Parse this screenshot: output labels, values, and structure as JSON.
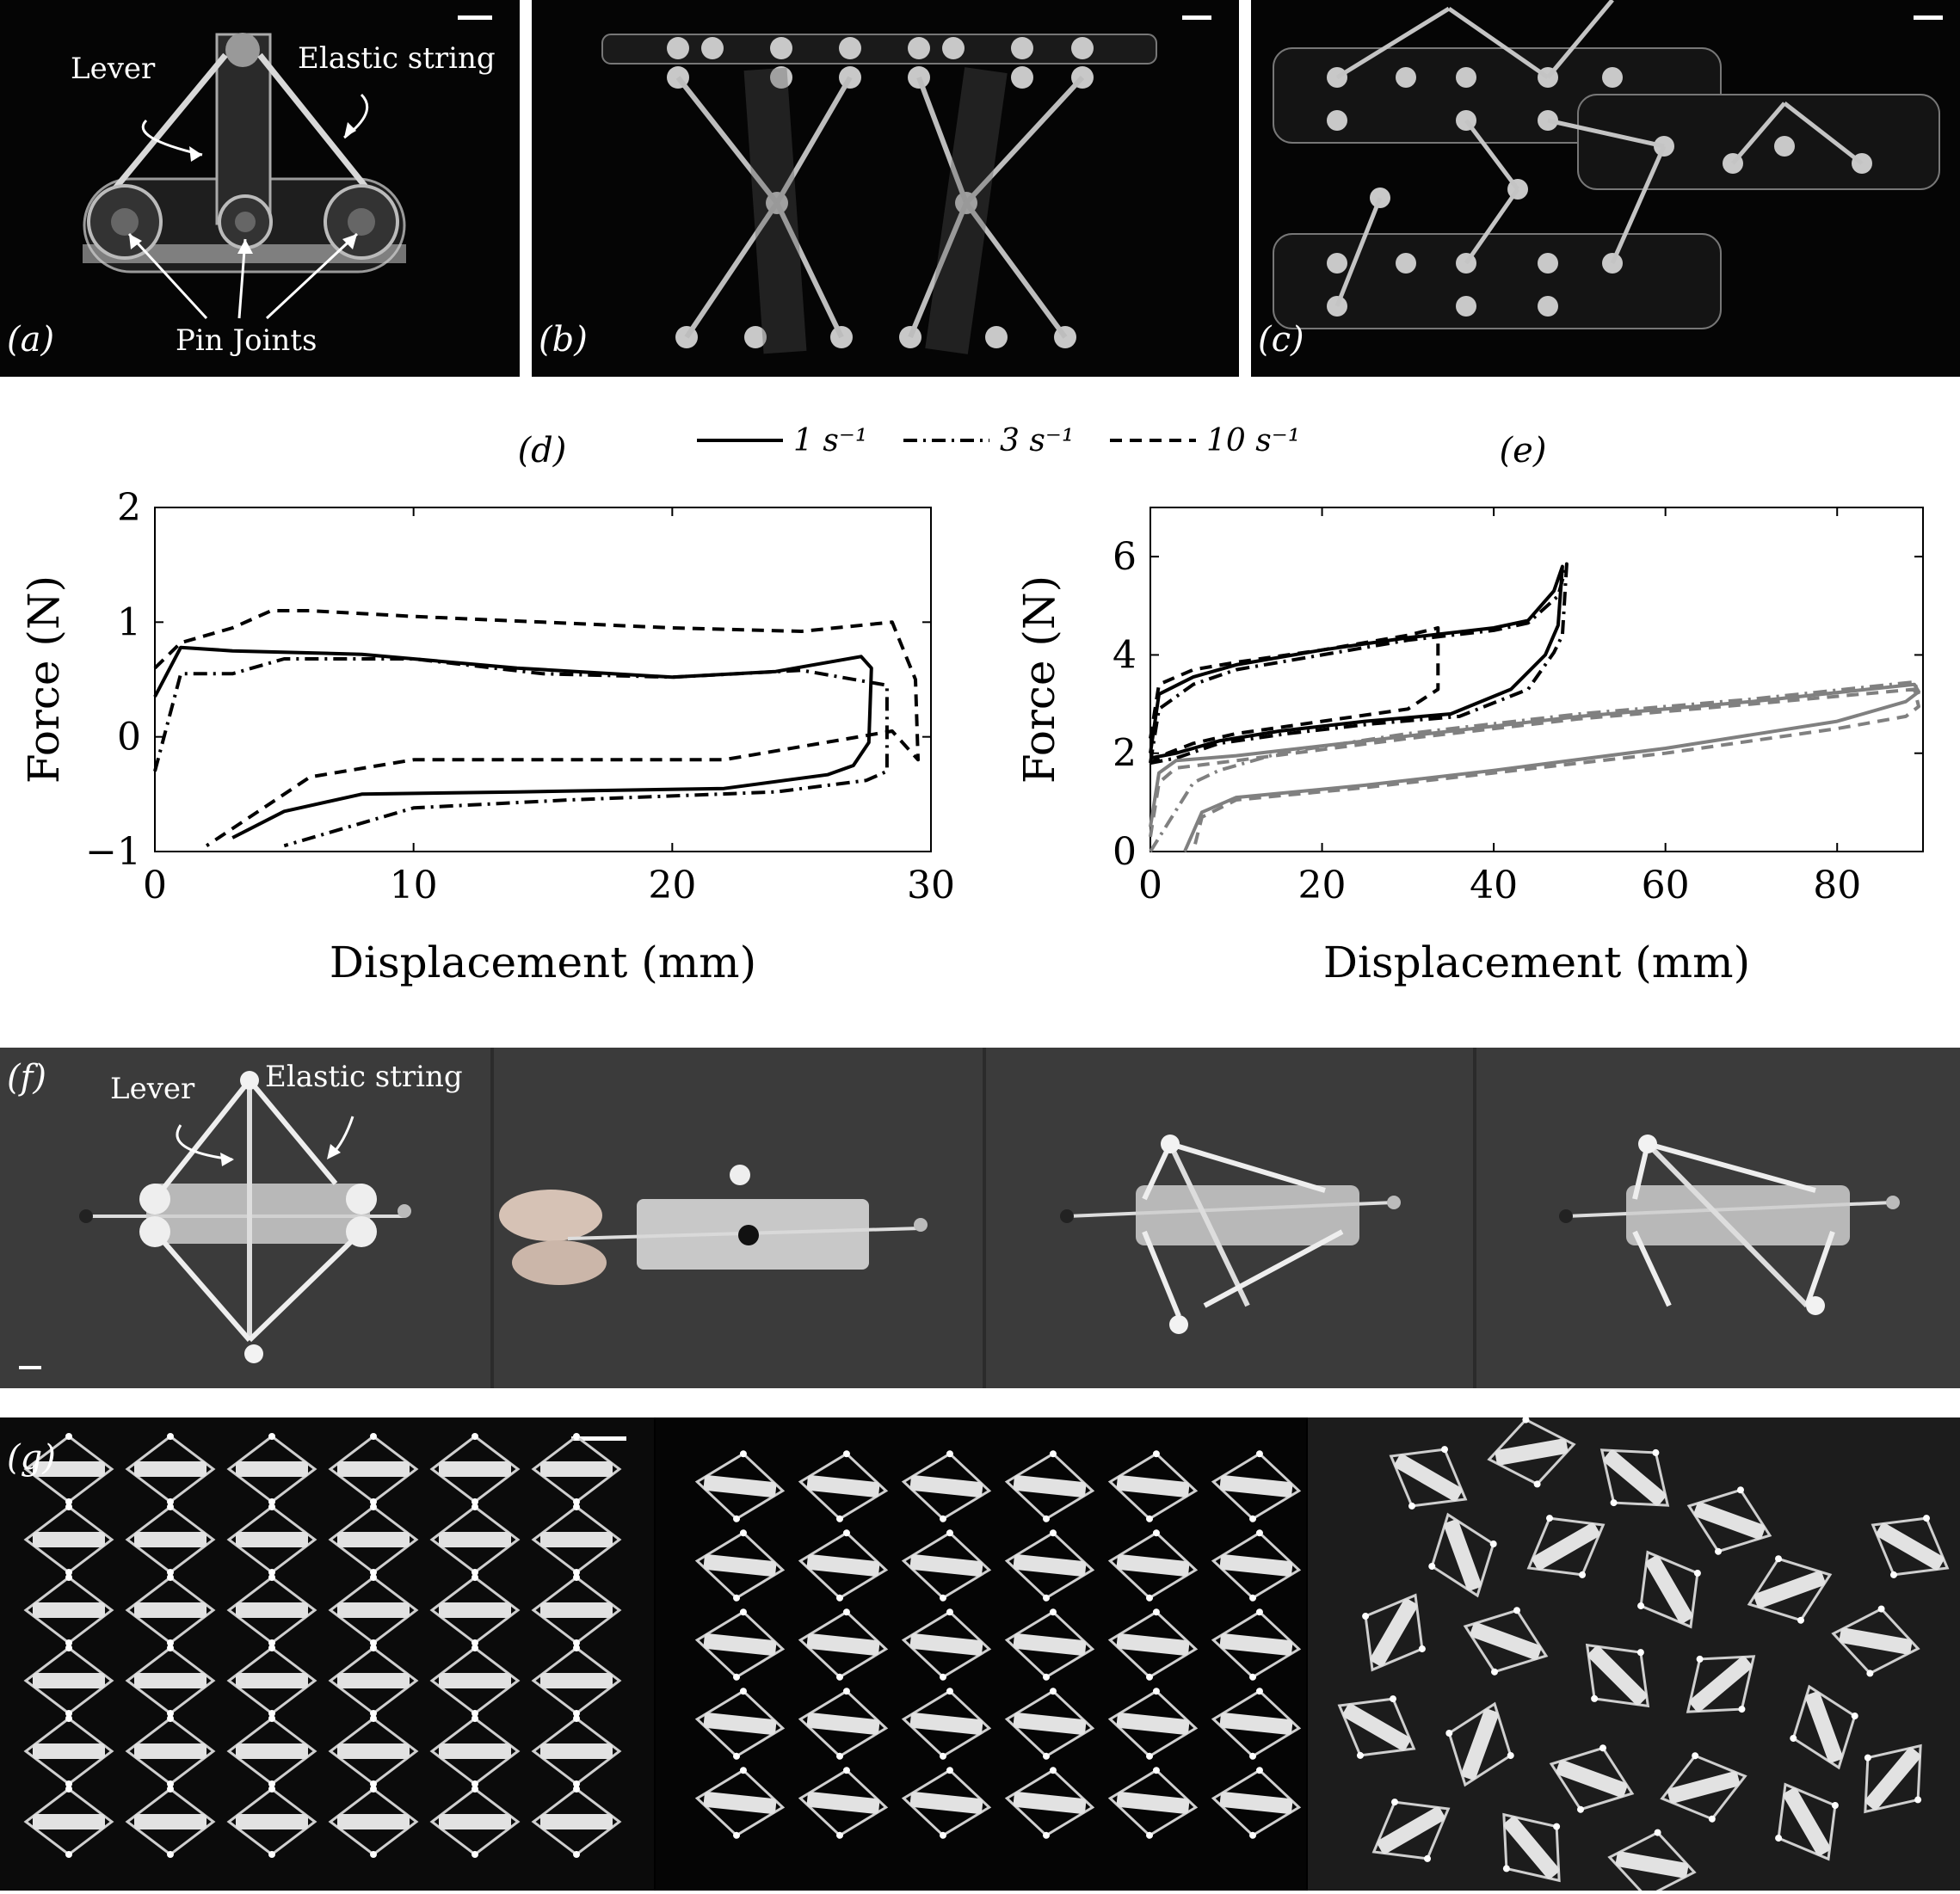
{
  "panels": {
    "a": {
      "label": "(a)",
      "lever": "Lever",
      "elastic": "Elastic string",
      "pins": "Pin Joints"
    },
    "b": {
      "label": "(b)"
    },
    "c": {
      "label": "(c)"
    },
    "f": {
      "label": "(f)",
      "lever": "Lever",
      "elastic": "Elastic string"
    },
    "g": {
      "label": "(g)"
    }
  },
  "legend": {
    "items": [
      {
        "label": "1 s⁻¹",
        "style": "solid"
      },
      {
        "label": "3 s⁻¹",
        "style": "dashdot"
      },
      {
        "label": "10 s⁻¹",
        "style": "dashed"
      }
    ]
  },
  "chart_data": [
    {
      "panel": "(d)",
      "type": "line",
      "xlabel": "Displacement (mm)",
      "ylabel": "Force (N)",
      "xlim": [
        0,
        30
      ],
      "ylim": [
        -1,
        2
      ],
      "xticks": [
        0,
        10,
        20,
        30
      ],
      "yticks": [
        -1,
        0,
        1,
        2
      ],
      "grid": false,
      "series": [
        {
          "name": "1 s⁻¹",
          "style": "solid",
          "color": "#000000",
          "x": [
            0,
            1,
            3,
            8,
            14,
            20,
            24,
            27.3,
            27.7,
            27.6,
            27,
            26,
            22,
            14,
            8,
            5,
            3
          ],
          "y": [
            0.35,
            0.78,
            0.75,
            0.72,
            0.6,
            0.52,
            0.57,
            0.7,
            0.6,
            -0.05,
            -0.25,
            -0.33,
            -0.45,
            -0.48,
            -0.5,
            -0.65,
            -0.88
          ]
        },
        {
          "name": "3 s⁻¹",
          "style": "dashdot",
          "color": "#000000",
          "x": [
            0,
            1,
            3,
            5,
            10,
            15,
            20,
            25,
            28.3,
            28.3,
            27.5,
            24,
            16,
            10,
            5
          ],
          "y": [
            -0.3,
            0.55,
            0.55,
            0.68,
            0.68,
            0.55,
            0.52,
            0.58,
            0.45,
            -0.3,
            -0.38,
            -0.48,
            -0.55,
            -0.62,
            -0.95
          ]
        },
        {
          "name": "10 s⁻¹",
          "style": "dashed",
          "color": "#000000",
          "x": [
            0,
            1,
            3,
            4.5,
            6,
            10,
            15,
            20,
            25,
            28.5,
            29.4,
            29.5,
            28.5,
            22,
            15,
            10,
            6,
            2
          ],
          "y": [
            0.6,
            0.82,
            0.95,
            1.1,
            1.1,
            1.05,
            1.0,
            0.95,
            0.92,
            1.0,
            0.5,
            -0.2,
            0.05,
            -0.2,
            -0.2,
            -0.2,
            -0.35,
            -0.95
          ]
        }
      ]
    },
    {
      "panel": "(e)",
      "type": "line",
      "xlabel": "Displacement (mm)",
      "ylabel": "Force (N)",
      "xlim": [
        0,
        90
      ],
      "ylim": [
        0,
        7
      ],
      "xticks": [
        0,
        20,
        40,
        60,
        80
      ],
      "yticks": [
        0,
        2,
        4,
        6
      ],
      "grid": false,
      "series": [
        {
          "style": "solid",
          "color": "#000000",
          "x": [
            0,
            1,
            5,
            10,
            20,
            30,
            40,
            44,
            47,
            48,
            47.5,
            46,
            42,
            35,
            25,
            15,
            8,
            3,
            0
          ],
          "y": [
            2.0,
            3.2,
            3.55,
            3.8,
            4.1,
            4.35,
            4.55,
            4.7,
            5.3,
            5.8,
            4.6,
            4.0,
            3.3,
            2.8,
            2.65,
            2.45,
            2.25,
            2.0,
            1.9
          ]
        },
        {
          "style": "dashdot",
          "color": "#000000",
          "x": [
            0,
            1,
            5,
            10,
            20,
            30,
            40,
            44,
            47.5,
            48.5,
            48,
            47,
            44,
            36,
            26,
            16,
            8,
            3,
            0
          ],
          "y": [
            1.8,
            2.9,
            3.4,
            3.7,
            4.0,
            4.3,
            4.5,
            4.65,
            5.2,
            5.85,
            4.4,
            4.05,
            3.3,
            2.75,
            2.6,
            2.4,
            2.2,
            1.9,
            1.8
          ]
        },
        {
          "style": "dashed",
          "color": "#000000",
          "x": [
            0,
            1,
            5,
            10,
            20,
            30,
            33.5,
            33.5,
            30,
            20,
            10,
            5,
            2,
            0
          ],
          "y": [
            2.3,
            3.4,
            3.7,
            3.85,
            4.1,
            4.4,
            4.55,
            3.3,
            2.9,
            2.65,
            2.4,
            2.2,
            2.0,
            1.8
          ]
        },
        {
          "style": "solid",
          "color": "#808080",
          "x": [
            0,
            1,
            3,
            10,
            30,
            50,
            70,
            89,
            89.5,
            88,
            80,
            60,
            40,
            25,
            10,
            6,
            4
          ],
          "y": [
            0.5,
            1.6,
            1.85,
            1.95,
            2.35,
            2.75,
            3.05,
            3.4,
            3.25,
            3.05,
            2.65,
            2.1,
            1.65,
            1.35,
            1.1,
            0.8,
            0
          ]
        },
        {
          "style": "dashed",
          "color": "#808080",
          "x": [
            0,
            1,
            3,
            10,
            30,
            50,
            70,
            89,
            89.5,
            88,
            80,
            60,
            40,
            25,
            10,
            6,
            5
          ],
          "y": [
            0.3,
            1.4,
            1.7,
            1.85,
            2.3,
            2.7,
            3.0,
            3.3,
            2.95,
            2.75,
            2.5,
            2.0,
            1.6,
            1.3,
            1.05,
            0.7,
            0
          ]
        },
        {
          "style": "dashdot",
          "color": "#808080",
          "x": [
            0,
            5,
            8,
            15,
            30,
            50,
            70,
            89,
            89.5
          ],
          "y": [
            0,
            1.4,
            1.65,
            2.0,
            2.4,
            2.8,
            3.1,
            3.45,
            3.2
          ]
        }
      ]
    }
  ]
}
